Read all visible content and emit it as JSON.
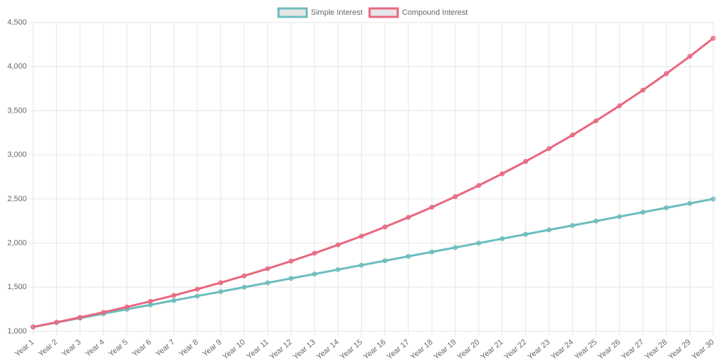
{
  "chart_data": {
    "type": "line",
    "categories": [
      "Year 1",
      "Year 2",
      "Year 3",
      "Year 4",
      "Year 5",
      "Year 6",
      "Year 7",
      "Year 8",
      "Year 9",
      "Year 10",
      "Year 11",
      "Year 12",
      "Year 13",
      "Year 14",
      "Year 15",
      "Year 16",
      "Year 17",
      "Year 18",
      "Year 19",
      "Year 20",
      "Year 21",
      "Year 22",
      "Year 23",
      "Year 24",
      "Year 25",
      "Year 26",
      "Year 27",
      "Year 28",
      "Year 29",
      "Year 30"
    ],
    "series": [
      {
        "name": "Simple Interest",
        "color": "#6cbdbd",
        "values": [
          1050,
          1100,
          1150,
          1200,
          1250,
          1300,
          1350,
          1400,
          1450,
          1500,
          1550,
          1600,
          1650,
          1700,
          1750,
          1800,
          1850,
          1900,
          1950,
          2000,
          2050,
          2100,
          2150,
          2200,
          2250,
          2300,
          2350,
          2400,
          2450,
          2500
        ]
      },
      {
        "name": "Compound Interest",
        "color": "#e8677f",
        "values": [
          1050,
          1102.5,
          1157.6,
          1215.5,
          1276.3,
          1340.1,
          1407.1,
          1477.5,
          1551.3,
          1628.9,
          1710.3,
          1795.9,
          1885.6,
          1979.9,
          2078.9,
          2182.9,
          2292.0,
          2406.6,
          2527.0,
          2653.3,
          2786.0,
          2925.3,
          3071.5,
          3225.1,
          3386.4,
          3555.7,
          3733.5,
          3920.1,
          4116.1,
          4321.9
        ]
      }
    ],
    "ylim": [
      1000,
      4500
    ],
    "yticks": [
      {
        "value": 1000,
        "label": "1,000"
      },
      {
        "value": 1500,
        "label": "1,500"
      },
      {
        "value": 2000,
        "label": "2,000"
      },
      {
        "value": 2500,
        "label": "2,500"
      },
      {
        "value": 3000,
        "label": "3,000"
      },
      {
        "value": 3500,
        "label": "3,500"
      },
      {
        "value": 4000,
        "label": "4,000"
      },
      {
        "value": 4500,
        "label": "4,500"
      }
    ],
    "grid": true,
    "legend": "top"
  }
}
